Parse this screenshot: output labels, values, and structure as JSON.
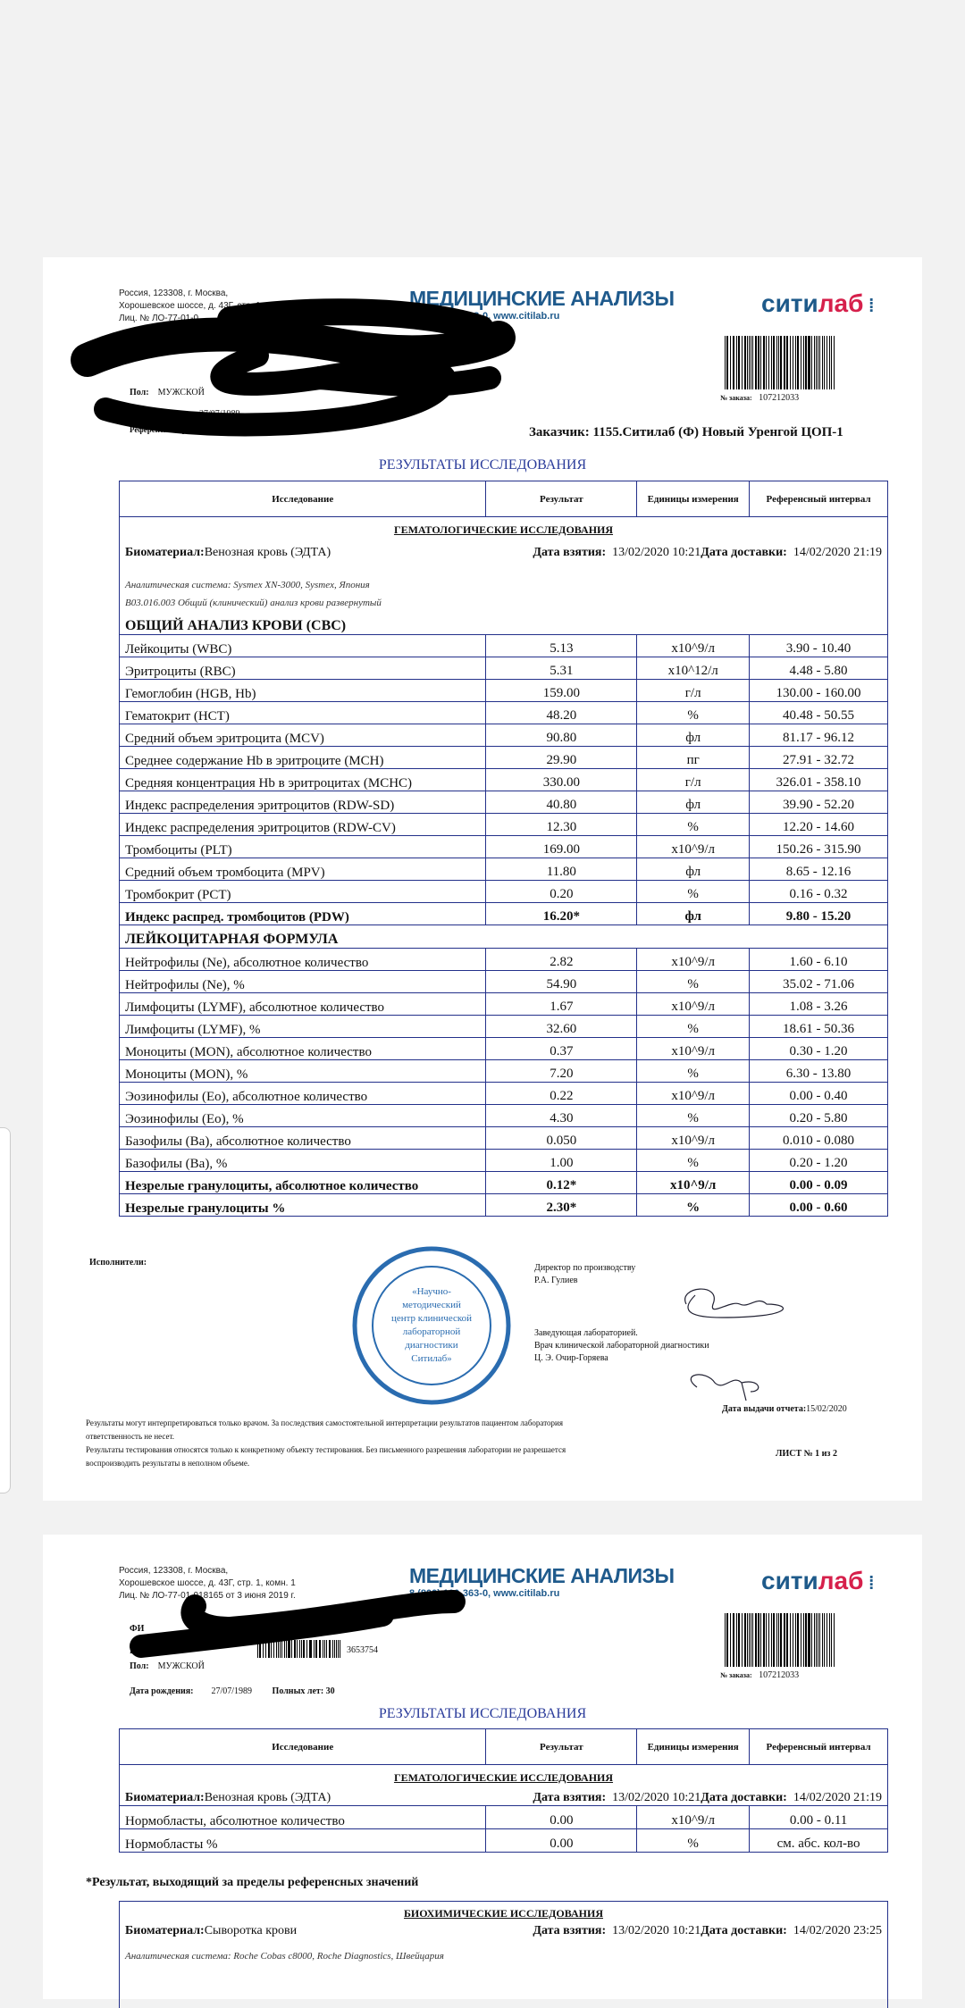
{
  "page1": {
    "address": [
      "Россия, 123308, г. Москва,",
      "Хорошевское шоссе, д. 43Г, стр. 1, комн. 1",
      "Лиц. № ЛО-77-01-0"
    ],
    "brand": "МЕДИЦИНСКИЕ АНАЛИЗЫ",
    "phone": "8 (800) 100-363-0, www.citilab.ru",
    "logo_a": "сити",
    "logo_b": "лаб",
    "order_label": "№ заказа:",
    "order_no": "107212033",
    "sex_label": "Пол:",
    "sex": "МУЖСКОЙ",
    "dob": "27/07/1989",
    "ref_group": "Референсная группа: Муж",
    "customer": "Заказчик: 1155.Ситилаб (Ф) Новый Уренгой ЦОП-1",
    "title": "РЕЗУЛЬТАТЫ ИССЛЕДОВАНИЯ",
    "headers": [
      "Исследование",
      "Результат",
      "Единицы измерения",
      "Референсный интервал"
    ],
    "section": "ГЕМАТОЛОГИЧЕСКИЕ ИССЛЕДОВАНИЯ",
    "bio_label": "Биоматериал:",
    "bio": "Венозная кровь (ЭДТА)",
    "taken_label": "Дата взятия:",
    "taken": "13/02/2020 10:21",
    "delivered_label": "Дата доставки:",
    "delivered": "14/02/2020 21:19",
    "system": "Аналитическая система: Sysmex XN-3000, Sysmex, Япония",
    "code": "B03.016.003 Общий (клинический) анализ крови развернутый",
    "cbc_title": "ОБЩИЙ АНАЛИЗ КРОВИ (CBC)",
    "rows": [
      [
        "Лейкоциты (WBC)",
        "5.13",
        "x10^9/л",
        "3.90 - 10.40"
      ],
      [
        "Эритроциты (RBC)",
        "5.31",
        "x10^12/л",
        "4.48 - 5.80"
      ],
      [
        "Гемоглобин (HGB, Hb)",
        "159.00",
        "г/л",
        "130.00 - 160.00"
      ],
      [
        "Гематокрит (HCT)",
        "48.20",
        "%",
        "40.48 - 50.55"
      ],
      [
        "Средний объем эритроцита (MCV)",
        "90.80",
        "фл",
        "81.17 - 96.12"
      ],
      [
        "Среднее содержание Hb в эритроците (MCH)",
        "29.90",
        "пг",
        "27.91 - 32.72"
      ],
      [
        "Средняя концентрация Hb в эритроцитах (MCHC)",
        "330.00",
        "г/л",
        "326.01 - 358.10"
      ],
      [
        "Индекс распределения эритроцитов (RDW-SD)",
        "40.80",
        "фл",
        "39.90 - 52.20"
      ],
      [
        "Индекс распределения эритроцитов (RDW-CV)",
        "12.30",
        "%",
        "12.20 - 14.60"
      ],
      [
        "Тромбоциты (PLT)",
        "169.00",
        "x10^9/л",
        "150.26 - 315.90"
      ],
      [
        "Средний объем тромбоцита (MPV)",
        "11.80",
        "фл",
        "8.65 - 12.16"
      ],
      [
        "Тромбокрит (PCT)",
        "0.20",
        "%",
        "0.16 - 0.32"
      ],
      [
        "Индекс распред. тромбоцитов (PDW)",
        "16.20*",
        "фл",
        "9.80 - 15.20"
      ]
    ],
    "wbc_title": "ЛЕЙКОЦИТАРНАЯ ФОРМУЛА",
    "rows2": [
      [
        "Нейтрофилы (Ne), абсолютное количество",
        "2.82",
        "x10^9/л",
        "1.60 - 6.10"
      ],
      [
        "Нейтрофилы (Ne), %",
        "54.90",
        "%",
        "35.02 - 71.06"
      ],
      [
        "Лимфоциты (LYMF), абсолютное количество",
        "1.67",
        "x10^9/л",
        "1.08 - 3.26"
      ],
      [
        "Лимфоциты (LYMF), %",
        "32.60",
        "%",
        "18.61 - 50.36"
      ],
      [
        "Моноциты (MON), абсолютное количество",
        "0.37",
        "x10^9/л",
        "0.30 - 1.20"
      ],
      [
        "Моноциты (MON), %",
        "7.20",
        "%",
        "6.30 - 13.80"
      ],
      [
        "Эозинофилы (Eo), абсолютное количество",
        "0.22",
        "x10^9/л",
        "0.00 - 0.40"
      ],
      [
        "Эозинофилы (Eo), %",
        "4.30",
        "%",
        "0.20 - 5.80"
      ],
      [
        "Базофилы (Ba), абсолютное количество",
        "0.050",
        "x10^9/л",
        "0.010 - 0.080"
      ],
      [
        "Базофилы (Ba), %",
        "1.00",
        "%",
        "0.20 - 1.20"
      ],
      [
        "Незрелые гранулоциты, абсолютное количество",
        "0.12*",
        "x10^9/л",
        "0.00 - 0.09"
      ],
      [
        "Незрелые гранулоциты %",
        "2.30*",
        "%",
        "0.00 - 0.60"
      ]
    ],
    "flagged": [
      12
    ],
    "flagged2": [
      10,
      11
    ],
    "executors": "Исполнители:",
    "stamp": "«Научно-методический центр клинической лабораторной диагностики Ситилаб» МОСКВА",
    "director": [
      "Директор по производству",
      "Р.А. Гулиев"
    ],
    "head": [
      "Заведующая лабораторией.",
      "Врач клинической лабораторной диагностики",
      "Ц. Э. Очир-Горяева"
    ],
    "issue_label": "Дата выдачи отчета:",
    "issue": "15/02/2020",
    "disclaimer": [
      "Результаты могут интерпретироваться только врачом. За последствия самостоятельной интерпретации результатов пациентом лаборатория",
      "ответственность не несет.",
      "Результаты тестирования относятся только к конкретному объекту тестирования. Без письменного разрешения лаборатории не разрешается",
      "воспроизводить результаты в неполном объеме."
    ],
    "sheet": "ЛИСТ № 1 из 2"
  },
  "page2": {
    "address": [
      "Россия, 123308, г. Москва,",
      "Хорошевское шоссе, д. 43Г, стр. 1, комн. 1",
      "Лиц. № ЛО-77-01-018165 от 3 июня 2019 г."
    ],
    "fio": "ФИ",
    "ind": "Ин",
    "ind_no": "3653754",
    "sex_label": "Пол:",
    "sex": "МУЖСКОЙ",
    "dob_label": "Дата рождения:",
    "dob": "27/07/1989",
    "age": "Полных лет: 30",
    "rows": [
      [
        "Нормобласты, абсолютное количество",
        "0.00",
        "x10^9/л",
        "0.00 - 0.11"
      ],
      [
        "Нормобласты %",
        "0.00",
        "%",
        "см. абс. кол-во"
      ]
    ],
    "footnote": "*Результат, выходящий за пределы референсных значений",
    "section2": "БИОХИМИЧЕСКИЕ ИССЛЕДОВАНИЯ",
    "bio2": "Сыворотка крови",
    "delivered2": "14/02/2020 23:25",
    "system2": "Аналитическая система: Roche Cobas c8000, Roche Diagnostics, Швейцария"
  },
  "colors": {
    "brand": "#1f5a8c",
    "logo_red": "#d6204b",
    "table_border": "#23308a",
    "title": "#2a3b9a"
  }
}
